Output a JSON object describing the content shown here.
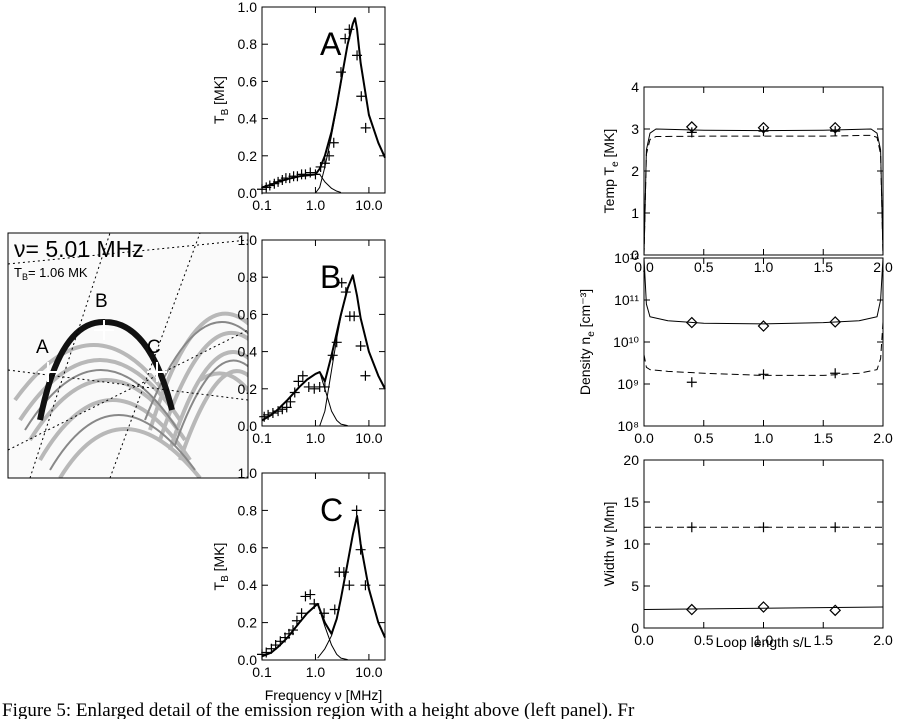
{
  "chart_data": [
    {
      "type": "line",
      "label": "A",
      "ylabel": [
        "T",
        "B",
        " [MK]"
      ],
      "xlog": true,
      "xlim": [
        0.1,
        20
      ],
      "ylim": [
        0,
        1.0
      ],
      "xticks": [
        0.1,
        {
          "value": 1,
          "label": "1.0"
        },
        {
          "value": 10,
          "label": "10.0"
        }
      ],
      "yticks": [
        {
          "value": 0,
          "label": "0.0"
        },
        0.2,
        0.4,
        0.6,
        0.8,
        {
          "value": 1,
          "label": "1.0"
        }
      ],
      "series": [
        {
          "color": "#000000",
          "linewidth": 2,
          "style": "solid",
          "x": [
            0.1,
            0.15,
            0.2,
            0.3,
            0.5,
            0.7,
            1.0,
            1.2,
            1.5,
            2,
            2.5,
            3,
            4,
            5,
            5.5,
            6,
            7,
            10,
            15,
            20
          ],
          "values": [
            0.03,
            0.045,
            0.06,
            0.075,
            0.09,
            0.095,
            0.1,
            0.13,
            0.2,
            0.33,
            0.47,
            0.6,
            0.8,
            0.91,
            0.94,
            0.88,
            0.7,
            0.42,
            0.27,
            0.19
          ]
        },
        {
          "color": "#000000",
          "linewidth": 1,
          "style": "solid",
          "x": [
            0.1,
            0.15,
            0.2,
            0.3,
            0.5,
            0.7,
            1.0,
            1.2,
            1.5,
            2,
            2.5,
            3
          ],
          "values": [
            0.03,
            0.045,
            0.06,
            0.075,
            0.09,
            0.095,
            0.1,
            0.1,
            0.06,
            0.025,
            0.01,
            0.003
          ]
        },
        {
          "color": "#000000",
          "linewidth": 1,
          "style": "solid",
          "x": [
            1.0,
            1.2,
            1.5,
            2,
            2.5,
            3,
            4,
            5,
            5.5,
            6,
            7,
            10,
            15,
            20
          ],
          "values": [
            0,
            0.03,
            0.14,
            0.31,
            0.46,
            0.59,
            0.8,
            0.91,
            0.94,
            0.88,
            0.7,
            0.42,
            0.27,
            0.19
          ]
        },
        {
          "color": "#000000",
          "marker": "+",
          "x": [
            0.1,
            0.12,
            0.14,
            0.17,
            0.2,
            0.24,
            0.28,
            0.33,
            0.39,
            0.46,
            0.55,
            0.65,
            0.8,
            1.0,
            1.25,
            1.5,
            1.8,
            2.2,
            3.0,
            3.6,
            4.3,
            6.0,
            7.2,
            8.7
          ],
          "values": [
            0.02,
            0.03,
            0.04,
            0.05,
            0.06,
            0.07,
            0.08,
            0.08,
            0.09,
            0.09,
            0.1,
            0.1,
            0.11,
            0.1,
            0.14,
            0.16,
            0.2,
            0.27,
            0.65,
            0.83,
            0.88,
            0.74,
            0.52,
            0.35
          ]
        }
      ]
    },
    {
      "type": "line",
      "label": "B",
      "xlog": true,
      "xlim": [
        0.1,
        20
      ],
      "ylim": [
        0,
        1.0
      ],
      "xticks": [
        0.1,
        {
          "value": 1,
          "label": "1.0"
        },
        {
          "value": 10,
          "label": "10.0"
        }
      ],
      "yticks": [
        {
          "value": 0,
          "label": "0.0"
        },
        0.2,
        0.4,
        0.6,
        0.8,
        {
          "value": 1,
          "label": "1.0"
        }
      ],
      "series": [
        {
          "color": "#000000",
          "linewidth": 2,
          "style": "solid",
          "x": [
            0.1,
            0.15,
            0.2,
            0.3,
            0.5,
            0.7,
            1.0,
            1.2,
            1.5,
            2,
            2.5,
            3,
            4,
            5,
            6,
            7,
            10,
            15,
            20
          ],
          "values": [
            0.03,
            0.06,
            0.09,
            0.14,
            0.21,
            0.25,
            0.28,
            0.29,
            0.24,
            0.38,
            0.5,
            0.6,
            0.74,
            0.81,
            0.7,
            0.58,
            0.4,
            0.27,
            0.2
          ]
        },
        {
          "color": "#000000",
          "linewidth": 1,
          "style": "solid",
          "x": [
            0.1,
            0.15,
            0.2,
            0.3,
            0.5,
            0.7,
            1.0,
            1.2,
            1.5,
            2,
            2.5,
            3,
            4
          ],
          "values": [
            0.03,
            0.06,
            0.09,
            0.14,
            0.21,
            0.25,
            0.28,
            0.29,
            0.2,
            0.08,
            0.03,
            0.01,
            0.002
          ]
        },
        {
          "color": "#000000",
          "linewidth": 1,
          "style": "solid",
          "x": [
            1.2,
            1.5,
            2,
            2.5,
            3,
            4,
            5,
            6,
            7,
            10,
            15,
            20
          ],
          "values": [
            0,
            0.08,
            0.3,
            0.47,
            0.59,
            0.74,
            0.81,
            0.7,
            0.58,
            0.4,
            0.27,
            0.2
          ]
        },
        {
          "color": "#000000",
          "marker": "+",
          "x": [
            0.11,
            0.13,
            0.16,
            0.2,
            0.24,
            0.29,
            0.34,
            0.41,
            0.48,
            0.58,
            0.75,
            0.95,
            1.2,
            1.5,
            2.1,
            2.5,
            3.1,
            3.7,
            4.4,
            5.3,
            7.0,
            8.6
          ],
          "values": [
            0.05,
            0.06,
            0.07,
            0.08,
            0.09,
            0.1,
            0.13,
            0.18,
            0.24,
            0.27,
            0.21,
            0.2,
            0.21,
            0.21,
            0.38,
            0.45,
            0.77,
            0.72,
            0.59,
            0.59,
            0.43,
            0.27
          ]
        }
      ]
    },
    {
      "type": "line",
      "label": "C",
      "ylabel": [
        "T",
        "B",
        " [MK]"
      ],
      "xlabel": "Frequency ν [MHz]",
      "xlog": true,
      "xlim": [
        0.1,
        20
      ],
      "ylim": [
        0,
        1.0
      ],
      "xticks": [
        0.1,
        {
          "value": 1,
          "label": "1.0"
        },
        {
          "value": 10,
          "label": "10.0"
        }
      ],
      "yticks": [
        {
          "value": 0,
          "label": "0.0"
        },
        0.2,
        0.4,
        0.6,
        0.8,
        {
          "value": 1,
          "label": "1.0"
        }
      ],
      "series": [
        {
          "color": "#000000",
          "linewidth": 2,
          "style": "solid",
          "x": [
            0.1,
            0.15,
            0.2,
            0.3,
            0.5,
            0.7,
            1.0,
            1.1,
            1.5,
            2,
            2.5,
            3,
            4,
            5,
            6,
            7,
            10,
            15,
            20
          ],
          "values": [
            0.02,
            0.04,
            0.07,
            0.12,
            0.2,
            0.25,
            0.29,
            0.3,
            0.2,
            0.14,
            0.22,
            0.33,
            0.52,
            0.67,
            0.77,
            0.62,
            0.38,
            0.2,
            0.12
          ]
        },
        {
          "color": "#000000",
          "linewidth": 1,
          "style": "solid",
          "x": [
            0.1,
            0.15,
            0.2,
            0.3,
            0.5,
            0.7,
            1.0,
            1.1,
            1.5,
            2,
            2.5,
            3,
            4
          ],
          "values": [
            0.02,
            0.04,
            0.07,
            0.12,
            0.2,
            0.25,
            0.29,
            0.3,
            0.18,
            0.08,
            0.03,
            0.01,
            0.002
          ]
        },
        {
          "color": "#000000",
          "linewidth": 1,
          "style": "solid",
          "x": [
            1.1,
            1.5,
            2,
            2.5,
            3,
            4,
            5,
            6,
            7,
            10,
            15,
            20
          ],
          "values": [
            0.01,
            0.06,
            0.13,
            0.22,
            0.33,
            0.52,
            0.67,
            0.77,
            0.62,
            0.38,
            0.2,
            0.12
          ]
        },
        {
          "color": "#000000",
          "marker": "+",
          "x": [
            0.1,
            0.12,
            0.15,
            0.18,
            0.22,
            0.27,
            0.32,
            0.38,
            0.45,
            0.55,
            0.65,
            0.8,
            0.95,
            1.45,
            2.3,
            2.8,
            3.4,
            4.3,
            5.9,
            7.0,
            8.6
          ],
          "values": [
            0.03,
            0.04,
            0.06,
            0.08,
            0.1,
            0.12,
            0.14,
            0.16,
            0.21,
            0.25,
            0.34,
            0.35,
            0.3,
            0.25,
            0.27,
            0.47,
            0.47,
            0.4,
            0.8,
            0.59,
            0.4
          ]
        }
      ]
    },
    {
      "type": "line",
      "ylabel": [
        "Temp T",
        "e",
        " [MK]"
      ],
      "xlim": [
        0,
        2.0
      ],
      "ylim": [
        0,
        4
      ],
      "xticks": [
        {
          "value": 0,
          "label": "0.0"
        },
        0.5,
        {
          "value": 1,
          "label": "1.0"
        },
        1.5,
        {
          "value": 2,
          "label": "2.0"
        }
      ],
      "yticks": [
        0,
        1,
        2,
        3,
        4
      ],
      "series": [
        {
          "color": "#000000",
          "linewidth": 1,
          "style": "solid",
          "x": [
            0,
            0.02,
            0.05,
            0.1,
            0.5,
            1.0,
            1.5,
            1.9,
            1.95,
            1.98,
            2.0
          ],
          "values": [
            0,
            2.5,
            2.9,
            3.0,
            2.97,
            2.96,
            2.97,
            3.0,
            2.9,
            2.5,
            0
          ]
        },
        {
          "color": "#000000",
          "linewidth": 1,
          "style": "dashed",
          "x": [
            0,
            0.02,
            0.05,
            0.1,
            0.5,
            1.0,
            1.5,
            1.9,
            1.95,
            1.98,
            2.0
          ],
          "values": [
            0,
            2.4,
            2.75,
            2.82,
            2.83,
            2.83,
            2.83,
            2.85,
            2.8,
            2.4,
            0
          ]
        },
        {
          "color": "#000000",
          "marker": "diamond",
          "x": [
            0.4,
            1.0,
            1.6
          ],
          "values": [
            3.05,
            3.03,
            3.03
          ]
        },
        {
          "color": "#000000",
          "marker": "+",
          "x": [
            0.4,
            1.0,
            1.6
          ],
          "values": [
            2.92,
            2.95,
            2.95
          ]
        }
      ]
    },
    {
      "type": "line",
      "ylabel": [
        "Density n",
        "e",
        " [cm⁻³]"
      ],
      "ylog": true,
      "xlim": [
        0,
        2.0
      ],
      "ylim": [
        100000000,
        1000000000000
      ],
      "xticks": [
        {
          "value": 0,
          "label": "0.0"
        },
        0.5,
        {
          "value": 1,
          "label": "1.0"
        },
        1.5,
        {
          "value": 2,
          "label": "2.0"
        }
      ],
      "yticks": [
        {
          "value": 100000000,
          "label": "10⁸"
        },
        {
          "value": 1000000000,
          "label": "10⁹"
        },
        {
          "value": 10000000000,
          "label": "10¹⁰"
        },
        {
          "value": 100000000000,
          "label": "10¹¹"
        },
        {
          "value": 1000000000000,
          "label": "10¹²"
        }
      ],
      "series": [
        {
          "color": "#000000",
          "linewidth": 1,
          "style": "solid",
          "x": [
            0,
            0.02,
            0.05,
            0.2,
            0.5,
            1.0,
            1.5,
            1.8,
            1.95,
            1.98,
            2.0
          ],
          "values": [
            1000000000000,
            80000000000,
            40000000000,
            32000000000,
            28000000000,
            27000000000,
            29000000000,
            32000000000,
            40000000000,
            100000000000,
            1000000000000
          ]
        },
        {
          "color": "#000000",
          "linewidth": 1,
          "style": "dashed",
          "x": [
            0,
            0.02,
            0.05,
            0.2,
            0.5,
            1.0,
            1.5,
            1.8,
            1.95,
            1.98,
            2.0
          ],
          "values": [
            5000000000,
            2500000000,
            2200000000,
            2000000000,
            1800000000,
            1600000000,
            1600000000,
            1800000000,
            2200000000,
            4000000000,
            30000000000
          ]
        },
        {
          "color": "#000000",
          "marker": "diamond",
          "x": [
            0.4,
            1.0,
            1.6
          ],
          "values": [
            29000000000,
            24000000000,
            30000000000
          ]
        },
        {
          "color": "#000000",
          "marker": "+",
          "x": [
            0.4,
            1.0,
            1.6
          ],
          "values": [
            1100000000,
            1700000000,
            1800000000
          ]
        }
      ]
    },
    {
      "type": "line",
      "ylabel": [
        "Width w [Mm]"
      ],
      "xlabel": "Loop length  s/L",
      "xlim": [
        0,
        2.0
      ],
      "ylim": [
        0,
        20
      ],
      "xticks": [
        {
          "value": 0,
          "label": "0.0"
        },
        0.5,
        {
          "value": 1,
          "label": "1.0"
        },
        1.5,
        {
          "value": 2,
          "label": "2.0"
        }
      ],
      "yticks": [
        0,
        5,
        10,
        15,
        20
      ],
      "series": [
        {
          "color": "#000000",
          "linewidth": 1,
          "style": "solid",
          "x": [
            0,
            2.0
          ],
          "values": [
            2.2,
            2.5
          ]
        },
        {
          "color": "#000000",
          "linewidth": 1,
          "style": "dashed",
          "x": [
            0,
            2.0
          ],
          "values": [
            12,
            12
          ]
        },
        {
          "color": "#000000",
          "marker": "diamond",
          "x": [
            0.4,
            1.0,
            1.6
          ],
          "values": [
            2.2,
            2.5,
            2.1
          ]
        },
        {
          "color": "#000000",
          "marker": "+",
          "x": [
            0.4,
            1.0,
            1.6
          ],
          "values": [
            12,
            12,
            12
          ]
        }
      ]
    }
  ],
  "image_panel": {
    "frequency_label": "ν= 5.01 MHz",
    "brightness_label": [
      "T",
      "B",
      "= 1.06 MK"
    ],
    "point_labels": [
      "A",
      "B",
      "C"
    ]
  },
  "caption": "Figure 5: Enlarged detail of the emission region with a height above (left panel). Fr"
}
